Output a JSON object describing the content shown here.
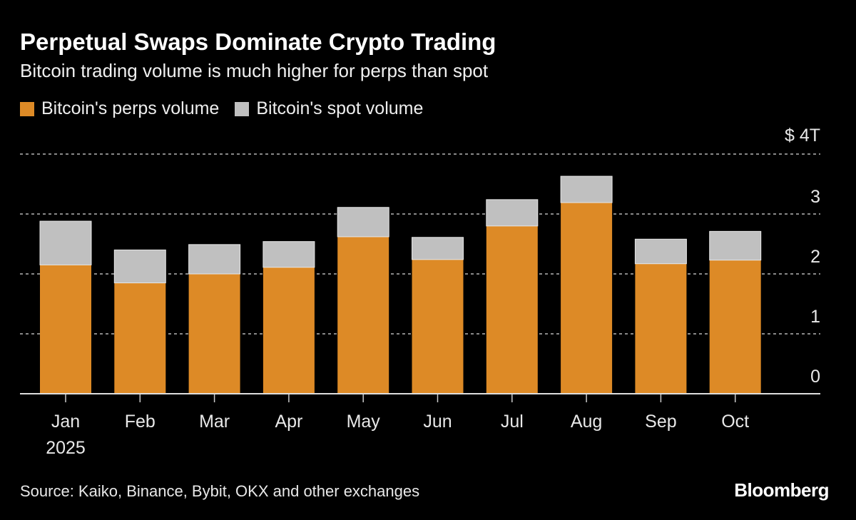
{
  "chart_data": {
    "type": "bar",
    "stacked": true,
    "title": "Perpetual Swaps Dominate Crypto Trading",
    "subtitle": "Bitcoin trading volume is much higher for perps than spot",
    "categories": [
      "Jan",
      "Feb",
      "Mar",
      "Apr",
      "May",
      "Jun",
      "Jul",
      "Aug",
      "Sep",
      "Oct"
    ],
    "year_label": "2025",
    "series": [
      {
        "name": "Bitcoin's perps volume",
        "color": "#dd8a26",
        "values": [
          2.15,
          1.85,
          2.0,
          2.11,
          2.62,
          2.24,
          2.8,
          3.19,
          2.17,
          2.23
        ]
      },
      {
        "name": "Bitcoin's spot volume",
        "color": "#c0c0c0",
        "values": [
          0.73,
          0.55,
          0.49,
          0.43,
          0.49,
          0.37,
          0.44,
          0.44,
          0.41,
          0.48
        ]
      }
    ],
    "yticks": [
      0,
      1,
      2,
      3,
      4
    ],
    "ytick_labels": [
      "0",
      "1",
      "2",
      "3",
      "$ 4T"
    ],
    "ylim": [
      0,
      4
    ],
    "unit": "trillion USD",
    "grid": "horizontal dotted",
    "legend_placement": "top-left",
    "y_axis_side": "right"
  },
  "source": "Source: Kaiko, Binance, Bybit, OKX and other exchanges",
  "logo": "Bloomberg",
  "colors": {
    "background": "#000000",
    "grid": "#888888"
  }
}
